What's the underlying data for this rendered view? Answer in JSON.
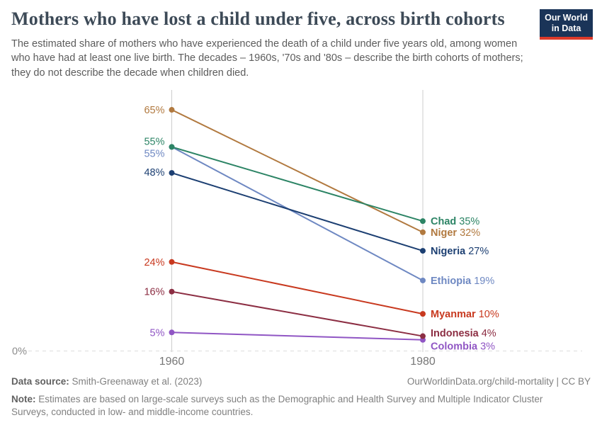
{
  "header": {
    "title": "Mothers who have lost a child under five, across birth cohorts",
    "subtitle": "The estimated share of mothers who have experienced the death of a child under five years old, among women who have had at least one live birth. The decades – 1960s, '70s and '80s – describe the birth cohorts of mothers; they do not describe the decade when children died.",
    "logo": {
      "line1": "Our World",
      "line2": "in Data",
      "bg_color": "#1a3458",
      "accent_color": "#dc3a2a"
    }
  },
  "chart_data": {
    "type": "line",
    "subtype": "slope",
    "title": "Mothers who have lost a child under five, across birth cohorts",
    "x_labels": [
      "1960",
      "1980"
    ],
    "ylim": [
      0,
      70
    ],
    "grid": "baseline-only",
    "baseline_label": "0%",
    "value_suffix": "%",
    "legend_position": "end-of-line-labels",
    "series": [
      {
        "name": "Chad",
        "values": [
          55,
          35
        ],
        "color": "#2c8465",
        "left_dy": -8,
        "right_dy": 0
      },
      {
        "name": "Niger",
        "values": [
          65,
          32
        ],
        "color": "#b1793f",
        "left_dy": 0,
        "right_dy": 0
      },
      {
        "name": "Nigeria",
        "values": [
          48,
          27
        ],
        "color": "#1c3f72",
        "left_dy": -1,
        "right_dy": 0
      },
      {
        "name": "Ethiopia",
        "values": [
          55,
          19
        ],
        "color": "#6e88c2",
        "left_dy": 9,
        "right_dy": 0
      },
      {
        "name": "Myanmar",
        "values": [
          24,
          10
        ],
        "color": "#c8391f",
        "left_dy": 0,
        "right_dy": 0
      },
      {
        "name": "Indonesia",
        "values": [
          16,
          4
        ],
        "color": "#8c2e43",
        "left_dy": 0,
        "right_dy": -4.5
      },
      {
        "name": "Colombia",
        "values": [
          5,
          3
        ],
        "color": "#9056c4",
        "left_dy": 0,
        "right_dy": 8.5
      }
    ]
  },
  "footer": {
    "source_label": "Data source:",
    "source_text": "Smith-Greenaway et al. (2023)",
    "link_text": "OurWorldinData.org/child-mortality | CC BY",
    "note_label": "Note:",
    "note_text": "Estimates are based on large-scale surveys such as the Demographic and Health Survey and Multiple Indicator Cluster Surveys, conducted in low- and middle-income countries."
  }
}
